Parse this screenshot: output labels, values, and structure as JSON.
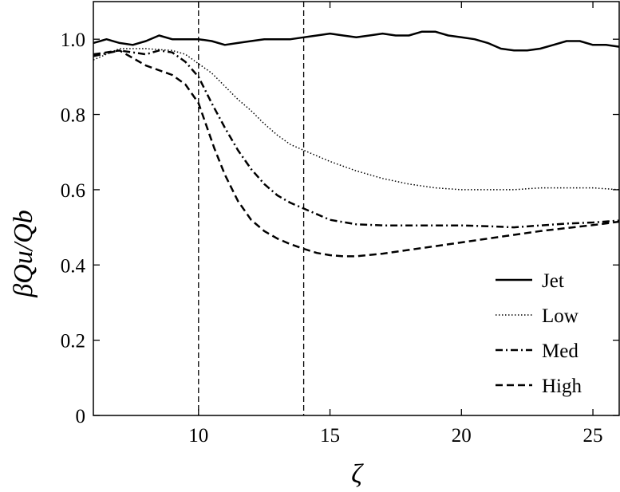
{
  "chart_data": {
    "type": "line",
    "title": "",
    "xlabel": "ζ",
    "ylabel": "βQu/Qb",
    "xlim": [
      6,
      26
    ],
    "ylim": [
      0,
      1.1
    ],
    "x_ticks": [
      10,
      15,
      20,
      25
    ],
    "x_tick_labels": [
      "10",
      "15",
      "20",
      "25"
    ],
    "y_ticks": [
      0,
      0.2,
      0.4,
      0.6,
      0.8,
      1.0
    ],
    "y_tick_labels": [
      "0",
      "0.2",
      "0.4",
      "0.6",
      "0.8",
      "1.0"
    ],
    "vertical_lines": [
      10,
      14
    ],
    "grid": false,
    "legend_position": "bottom-right",
    "series": [
      {
        "name": "Jet",
        "style": "solid",
        "x": [
          6,
          6.5,
          7,
          7.5,
          8,
          8.5,
          9,
          9.5,
          10,
          10.5,
          11,
          11.5,
          12,
          12.5,
          13,
          13.5,
          14,
          14.5,
          15,
          15.5,
          16,
          16.5,
          17,
          17.5,
          18,
          18.5,
          19,
          19.5,
          20,
          20.5,
          21,
          21.5,
          22,
          22.5,
          23,
          23.5,
          24,
          24.5,
          25,
          25.5,
          26
        ],
        "y": [
          0.99,
          1.0,
          0.99,
          0.985,
          0.995,
          1.01,
          1.0,
          1.0,
          1.0,
          0.995,
          0.985,
          0.99,
          0.995,
          1.0,
          1.0,
          1.0,
          1.005,
          1.01,
          1.015,
          1.01,
          1.005,
          1.01,
          1.015,
          1.01,
          1.01,
          1.02,
          1.02,
          1.01,
          1.005,
          1.0,
          0.99,
          0.975,
          0.97,
          0.97,
          0.975,
          0.985,
          0.995,
          0.995,
          0.985,
          0.985,
          0.98
        ]
      },
      {
        "name": "Low",
        "style": "dotted",
        "x": [
          6,
          7,
          8,
          9,
          9.5,
          10,
          10.5,
          11,
          11.5,
          12,
          12.5,
          13,
          13.5,
          14,
          15,
          16,
          17,
          18,
          19,
          20,
          21,
          22,
          23,
          24,
          25,
          26
        ],
        "y": [
          0.945,
          0.975,
          0.975,
          0.97,
          0.96,
          0.935,
          0.91,
          0.875,
          0.84,
          0.81,
          0.775,
          0.745,
          0.72,
          0.705,
          0.675,
          0.65,
          0.63,
          0.615,
          0.605,
          0.6,
          0.6,
          0.6,
          0.605,
          0.605,
          0.605,
          0.6
        ]
      },
      {
        "name": "Med",
        "style": "dash-dot",
        "x": [
          6,
          7,
          8,
          8.5,
          9,
          9.5,
          10,
          10.5,
          11,
          11.5,
          12,
          12.5,
          13,
          13.5,
          14,
          15,
          16,
          17,
          18,
          19,
          20,
          21,
          22,
          23,
          24,
          25,
          26
        ],
        "y": [
          0.955,
          0.97,
          0.96,
          0.97,
          0.965,
          0.94,
          0.9,
          0.83,
          0.765,
          0.705,
          0.655,
          0.615,
          0.585,
          0.565,
          0.55,
          0.52,
          0.508,
          0.505,
          0.505,
          0.505,
          0.505,
          0.503,
          0.5,
          0.505,
          0.51,
          0.513,
          0.518
        ]
      },
      {
        "name": "High",
        "style": "dashed",
        "x": [
          6,
          7,
          8,
          9,
          9.5,
          10,
          10.3,
          10.6,
          11,
          11.5,
          12,
          12.5,
          13,
          13.5,
          14,
          14.5,
          15,
          15.5,
          16,
          17,
          18,
          19,
          20,
          21,
          22,
          23,
          24,
          25,
          26
        ],
        "y": [
          0.96,
          0.97,
          0.93,
          0.905,
          0.88,
          0.83,
          0.77,
          0.71,
          0.64,
          0.57,
          0.52,
          0.49,
          0.47,
          0.455,
          0.443,
          0.432,
          0.426,
          0.423,
          0.423,
          0.43,
          0.44,
          0.45,
          0.46,
          0.47,
          0.48,
          0.49,
          0.498,
          0.506,
          0.515
        ]
      }
    ]
  }
}
